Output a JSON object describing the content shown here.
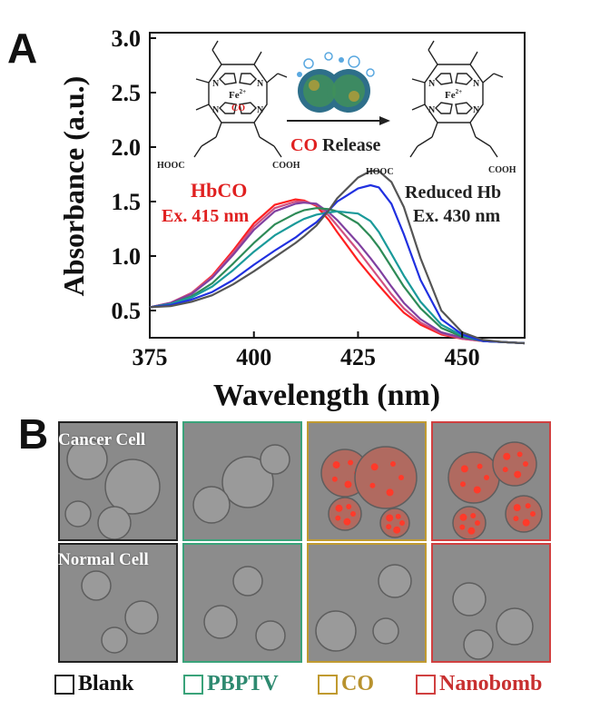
{
  "figure": {
    "panel_a_letter": "A",
    "panel_b_letter": "B"
  },
  "chart_data": {
    "type": "line",
    "xlabel": "Wavelength (nm)",
    "ylabel": "Absorbance (a.u.)",
    "xlim": [
      375,
      465
    ],
    "ylim": [
      0.25,
      3.05
    ],
    "xticks": [
      375,
      400,
      425,
      450
    ],
    "yticks": [
      0.5,
      1.0,
      1.5,
      2.0,
      2.5,
      3.0
    ],
    "xtick_labels": [
      "375",
      "400",
      "425",
      "450"
    ],
    "ytick_labels": [
      "0.5",
      "1.0",
      "1.5",
      "2.0",
      "2.5",
      "3.0"
    ],
    "annotations": {
      "left_name": "HbCO",
      "left_ex": "Ex. 415 nm",
      "right_name": "Reduced Hb",
      "right_ex": "Ex. 430 nm",
      "arrow_prefix": "CO",
      "arrow_suffix": " Release",
      "hooc_left": "HOOC",
      "cooh_left": "COOH",
      "hooc_right": "HOOC",
      "cooh_right": "COOH",
      "fe_left": "Fe",
      "fe_charge": "2+",
      "co_ligand": "CO",
      "fe_right": "Fe",
      "n_atom": "N"
    },
    "x": [
      375,
      380,
      385,
      390,
      395,
      400,
      405,
      410,
      412,
      415,
      418,
      420,
      425,
      428,
      430,
      433,
      436,
      440,
      445,
      450,
      455,
      460,
      465
    ],
    "series": [
      {
        "color": "#ff2020",
        "values": [
          0.53,
          0.57,
          0.66,
          0.82,
          1.05,
          1.3,
          1.47,
          1.52,
          1.51,
          1.46,
          1.33,
          1.22,
          0.96,
          0.82,
          0.73,
          0.6,
          0.48,
          0.37,
          0.28,
          0.24,
          0.22,
          0.21,
          0.2
        ]
      },
      {
        "color": "#d05080",
        "values": [
          0.53,
          0.57,
          0.66,
          0.81,
          1.03,
          1.27,
          1.44,
          1.5,
          1.5,
          1.47,
          1.37,
          1.28,
          1.05,
          0.9,
          0.8,
          0.65,
          0.52,
          0.39,
          0.29,
          0.24,
          0.22,
          0.21,
          0.2
        ]
      },
      {
        "color": "#8040a0",
        "values": [
          0.53,
          0.57,
          0.65,
          0.8,
          1.01,
          1.24,
          1.41,
          1.48,
          1.49,
          1.48,
          1.4,
          1.33,
          1.12,
          0.98,
          0.88,
          0.72,
          0.57,
          0.42,
          0.3,
          0.25,
          0.22,
          0.21,
          0.2
        ]
      },
      {
        "color": "#2e8b57",
        "values": [
          0.53,
          0.56,
          0.63,
          0.75,
          0.93,
          1.12,
          1.29,
          1.39,
          1.42,
          1.44,
          1.43,
          1.41,
          1.3,
          1.18,
          1.08,
          0.9,
          0.72,
          0.52,
          0.34,
          0.26,
          0.22,
          0.21,
          0.2
        ]
      },
      {
        "color": "#1a9a9a",
        "values": [
          0.53,
          0.56,
          0.62,
          0.72,
          0.87,
          1.04,
          1.19,
          1.3,
          1.34,
          1.38,
          1.4,
          1.41,
          1.39,
          1.32,
          1.22,
          1.02,
          0.82,
          0.58,
          0.37,
          0.27,
          0.22,
          0.21,
          0.2
        ]
      },
      {
        "color": "#2030e0",
        "values": [
          0.53,
          0.55,
          0.6,
          0.67,
          0.78,
          0.92,
          1.05,
          1.17,
          1.23,
          1.31,
          1.42,
          1.5,
          1.62,
          1.65,
          1.63,
          1.48,
          1.2,
          0.78,
          0.42,
          0.28,
          0.22,
          0.21,
          0.2
        ]
      },
      {
        "color": "#555555",
        "values": [
          0.53,
          0.54,
          0.58,
          0.64,
          0.74,
          0.86,
          0.99,
          1.12,
          1.18,
          1.28,
          1.42,
          1.53,
          1.72,
          1.78,
          1.78,
          1.68,
          1.45,
          0.98,
          0.5,
          0.3,
          0.23,
          0.21,
          0.2
        ]
      }
    ]
  },
  "panel_b": {
    "row_labels": [
      "Cancer Cell",
      "Normal Cell"
    ],
    "columns": [
      {
        "color": "#222222"
      },
      {
        "color": "#3aa37a"
      },
      {
        "color": "#c09a30"
      },
      {
        "color": "#d04040"
      }
    ],
    "legend": [
      {
        "label": "Blank",
        "color": "#222222",
        "text_color": "#111111"
      },
      {
        "label": "PBPTV",
        "color": "#3aa37a",
        "text_color": "#2e8a70"
      },
      {
        "label": "CO",
        "color": "#c09a30",
        "text_color": "#b8922e"
      },
      {
        "label": "Nanobomb",
        "color": "#d04040",
        "text_color": "#c83030"
      }
    ]
  }
}
